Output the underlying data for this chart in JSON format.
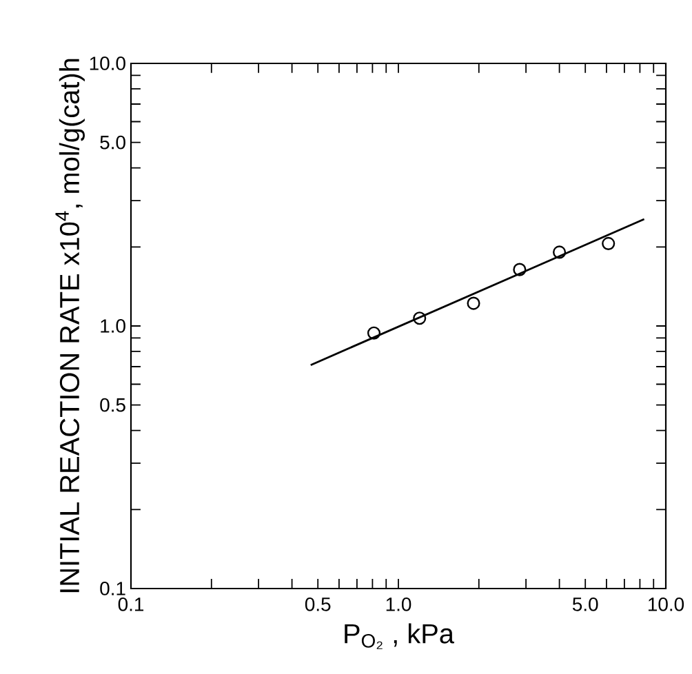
{
  "chart_data": {
    "type": "scatter",
    "xlabel": "P$_{O₂}$ ,  kPa",
    "ylabel": "INITIAL  REACTION RATE x10$^{4}$, mol/g(cat)h",
    "log": "xy",
    "xlim": [
      0.1,
      10
    ],
    "ylim": [
      0.1,
      10
    ],
    "xticks": [
      {
        "value": 0.1,
        "label": "0.1"
      },
      {
        "value": 0.2,
        "label": null
      },
      {
        "value": 0.3,
        "label": null
      },
      {
        "value": 0.4,
        "label": null
      },
      {
        "value": 0.5,
        "label": "0.5"
      },
      {
        "value": 0.6,
        "label": null
      },
      {
        "value": 0.7,
        "label": null
      },
      {
        "value": 0.8,
        "label": null
      },
      {
        "value": 0.9,
        "label": null
      },
      {
        "value": 1,
        "label": "1.0"
      },
      {
        "value": 2,
        "label": null
      },
      {
        "value": 3,
        "label": null
      },
      {
        "value": 4,
        "label": null
      },
      {
        "value": 5,
        "label": "5.0"
      },
      {
        "value": 6,
        "label": null
      },
      {
        "value": 7,
        "label": null
      },
      {
        "value": 8,
        "label": null
      },
      {
        "value": 9,
        "label": null
      },
      {
        "value": 10,
        "label": "10.0"
      }
    ],
    "yticks": [
      {
        "value": 0.1,
        "label": "0.1"
      },
      {
        "value": 0.2,
        "label": null
      },
      {
        "value": 0.3,
        "label": null
      },
      {
        "value": 0.4,
        "label": null
      },
      {
        "value": 0.5,
        "label": "0.5"
      },
      {
        "value": 0.6,
        "label": null
      },
      {
        "value": 0.7,
        "label": null
      },
      {
        "value": 0.8,
        "label": null
      },
      {
        "value": 0.9,
        "label": null
      },
      {
        "value": 1,
        "label": "1.0"
      },
      {
        "value": 2,
        "label": null
      },
      {
        "value": 3,
        "label": null
      },
      {
        "value": 4,
        "label": null
      },
      {
        "value": 5,
        "label": "5.0"
      },
      {
        "value": 6,
        "label": null
      },
      {
        "value": 7,
        "label": null
      },
      {
        "value": 8,
        "label": null
      },
      {
        "value": 9,
        "label": null
      },
      {
        "value": 10,
        "label": "10.0"
      }
    ],
    "grid": false,
    "series": [
      {
        "marker": "circle",
        "color": "#000000",
        "x": [
          0.81,
          1.2,
          1.91,
          2.84,
          4.0,
          6.1
        ],
        "values": [
          0.94,
          1.07,
          1.22,
          1.64,
          1.91,
          2.06
        ]
      },
      {
        "type": "line",
        "marker": "none",
        "line_style": "solid",
        "color": "#000000",
        "x": [
          0.47,
          8.3
        ],
        "values": [
          0.71,
          2.55
        ]
      }
    ]
  }
}
